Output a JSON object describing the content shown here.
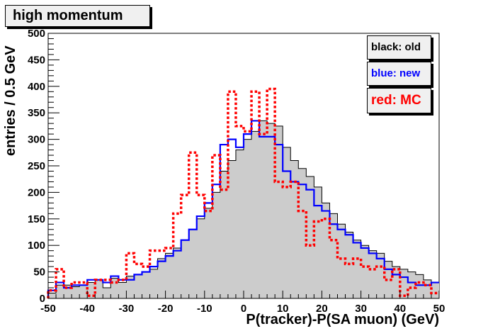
{
  "chart_data": {
    "type": "histogram",
    "title": "high momentum",
    "xlabel": "P(tracker)-P(SA muon) (GeV)",
    "ylabel": "entries / 0.5 GeV",
    "xlim": [
      -50,
      50
    ],
    "ylim": [
      0,
      500
    ],
    "xticks": [
      -50,
      -40,
      -30,
      -20,
      -10,
      0,
      10,
      20,
      30,
      40,
      50
    ],
    "yticks": [
      0,
      50,
      100,
      150,
      200,
      250,
      300,
      350,
      400,
      450,
      500
    ],
    "bin_edges_start": -50,
    "bin_width": 2,
    "legend": [
      {
        "label": "black: old",
        "color": "#000000"
      },
      {
        "label": "blue: new",
        "color": "#0000ff"
      },
      {
        "label": "red: MC",
        "color": "#ff0000"
      }
    ],
    "series": [
      {
        "color": "#000000",
        "fill": "#cccccc",
        "style": "solid",
        "values": [
          10,
          25,
          25,
          22,
          25,
          30,
          35,
          20,
          38,
          30,
          42,
          45,
          50,
          55,
          75,
          85,
          95,
          110,
          130,
          150,
          170,
          200,
          240,
          260,
          280,
          300,
          315,
          335,
          330,
          325,
          285,
          260,
          245,
          230,
          210,
          180,
          160,
          140,
          125,
          110,
          100,
          90,
          85,
          70,
          60,
          55,
          50,
          45,
          35,
          30
        ]
      },
      {
        "color": "#0000ff",
        "style": "solid",
        "values": [
          15,
          30,
          20,
          25,
          25,
          35,
          35,
          30,
          42,
          35,
          35,
          45,
          50,
          60,
          70,
          80,
          90,
          110,
          130,
          155,
          180,
          215,
          290,
          300,
          285,
          310,
          335,
          305,
          305,
          290,
          240,
          220,
          215,
          205,
          175,
          165,
          140,
          130,
          120,
          105,
          95,
          85,
          75,
          55,
          45,
          40,
          30,
          25,
          25,
          30
        ]
      },
      {
        "color": "#ff0000",
        "style": "dotted",
        "values": [
          15,
          55,
          20,
          30,
          30,
          5,
          35,
          35,
          30,
          35,
          85,
          65,
          60,
          90,
          90,
          95,
          160,
          195,
          275,
          195,
          165,
          270,
          205,
          390,
          325,
          315,
          390,
          310,
          395,
          220,
          210,
          220,
          165,
          100,
          145,
          150,
          110,
          75,
          65,
          75,
          60,
          55,
          60,
          35,
          55,
          5,
          20,
          30,
          25,
          10
        ]
      }
    ]
  }
}
